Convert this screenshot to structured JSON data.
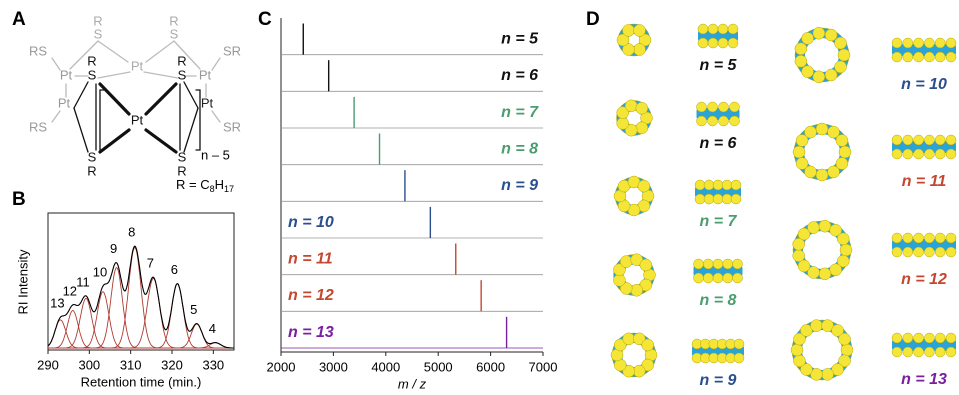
{
  "panel_labels": [
    "A",
    "B",
    "C",
    "D"
  ],
  "structure": {
    "atoms": [
      "R",
      "S",
      "R",
      "S",
      "Pt",
      "RS",
      "SR",
      "Pt",
      "Pt",
      "R",
      "S",
      "R",
      "S",
      "Pt",
      "Pt",
      "Pt",
      "RS",
      "SR",
      "S",
      "R",
      "S",
      "R"
    ],
    "repeat": "n – 5",
    "formula": [
      "R = C",
      "8",
      "H",
      "17"
    ]
  },
  "chart_data": [
    {
      "type": "chromatogram",
      "x_label": "Retention time (min.)",
      "y_label": "RI Intensity",
      "categories": [
        "13",
        "12",
        "11",
        "10",
        "9",
        "8",
        "7",
        "6",
        "5",
        "4"
      ],
      "x": [
        293,
        296,
        299.2,
        303.3,
        306.6,
        311,
        315.5,
        321.3,
        326,
        330.5
      ],
      "values": [
        0.21,
        0.28,
        0.37,
        0.42,
        0.6,
        0.75,
        0.52,
        0.48,
        0.18,
        0.04
      ],
      "widths": [
        1.3,
        1.3,
        1.4,
        1.4,
        1.4,
        1.5,
        1.5,
        1.4,
        1.3,
        1.3
      ],
      "color": "#b03a30",
      "sum_color": "#000000",
      "xlim": [
        290,
        335
      ],
      "ylim": [
        0,
        1
      ],
      "xticks": [
        290,
        300,
        310,
        320,
        330
      ]
    },
    {
      "type": "spectra",
      "x_label": "m / z",
      "series": [
        {
          "name": "n = 5",
          "color": "#111111",
          "x": 2425
        },
        {
          "name": "n = 6",
          "color": "#111111",
          "x": 2910
        },
        {
          "name": "n = 7",
          "color": "#4a9d6f",
          "x": 3395
        },
        {
          "name": "n = 8",
          "color": "#4a9d6f",
          "x": 3880
        },
        {
          "name": "n = 9",
          "color": "#2b4f8e",
          "x": 4365
        },
        {
          "name": "n = 10",
          "color": "#2b4f8e",
          "x": 4850
        },
        {
          "name": "n = 11",
          "color": "#c4472f",
          "x": 5335
        },
        {
          "name": "n = 12",
          "color": "#c4472f",
          "x": 5820
        },
        {
          "name": "n = 13",
          "color": "#7a1fa2",
          "x": 6305
        }
      ],
      "xlim": [
        2000,
        7000
      ],
      "xticks": [
        2000,
        3000,
        4000,
        5000,
        6000,
        7000
      ]
    }
  ],
  "models": [
    {
      "label": "n = 5",
      "color": "#111111"
    },
    {
      "label": "n = 6",
      "color": "#111111"
    },
    {
      "label": "n = 7",
      "color": "#4a9d6f"
    },
    {
      "label": "n = 8",
      "color": "#4a9d6f"
    },
    {
      "label": "n = 9",
      "color": "#2b4f8e"
    },
    {
      "label": "n = 10",
      "color": "#2b4f8e"
    },
    {
      "label": "n = 11",
      "color": "#c4472f"
    },
    {
      "label": "n = 12",
      "color": "#c4472f"
    },
    {
      "label": "n = 13",
      "color": "#7a1fa2"
    }
  ]
}
